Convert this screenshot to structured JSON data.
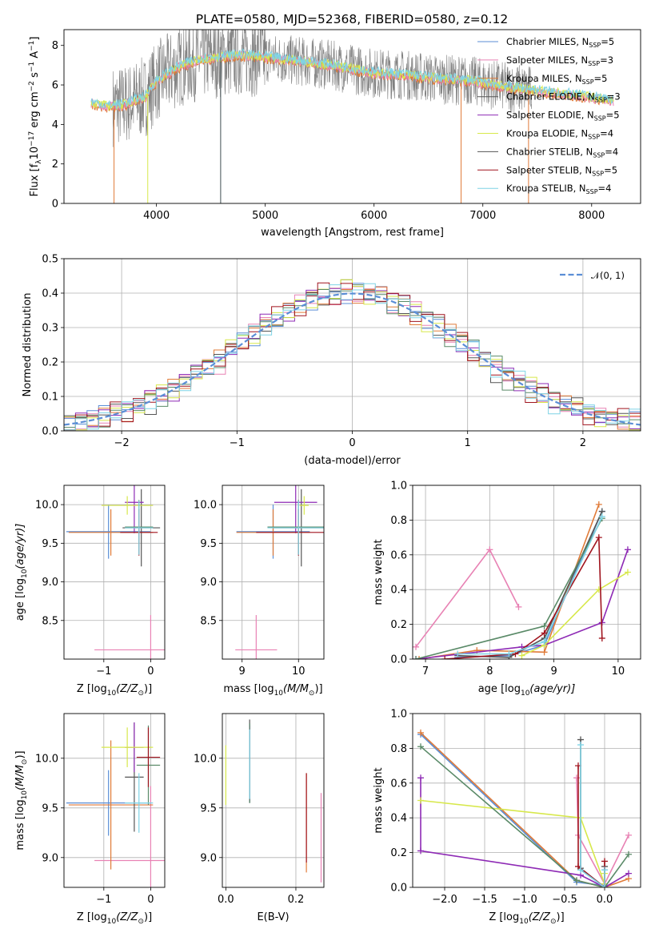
{
  "title": "PLATE=0580, MJD=52368, FIBERID=0580, z=0.12",
  "colors": {
    "chabrier_miles": "#5b8ed6",
    "salpeter_miles": "#e882b4",
    "kroupa_miles": "#e07b39",
    "chabrier_elodie": "#555555",
    "salpeter_elodie": "#8e2ab5",
    "kroupa_elodie": "#d7e84b",
    "chabrier_stelib": "#5a8a68",
    "salpeter_stelib": "#a0141e",
    "kroupa_stelib": "#7fd4e6",
    "gaussian": "#5b8ed6",
    "grey_spectrum": "#808080"
  },
  "chart_data": [
    {
      "id": "spectrum",
      "type": "line",
      "title": "PLATE=0580, MJD=52368, FIBERID=0580, z=0.12",
      "xlabel": "wavelength [Angstrom, rest frame]",
      "ylabel_parts": [
        "Flux [f",
        "λ",
        "10",
        "−17",
        " erg cm",
        "−2",
        " s",
        "−1",
        " A",
        "−1",
        "]"
      ],
      "xlim": [
        3150,
        8450
      ],
      "ylim": [
        0,
        8.8
      ],
      "xticks": [
        "4000",
        "5000",
        "6000",
        "7000",
        "8000"
      ],
      "xtick_values": [
        4000,
        5000,
        6000,
        7000,
        8000
      ],
      "yticks": [
        "0",
        "2",
        "4",
        "6",
        "8"
      ],
      "ytick_values": [
        0,
        2,
        4,
        6,
        8
      ],
      "legend_position": "top-right",
      "legend": [
        {
          "base": "Chabrier MILES, N",
          "sub": "SSP",
          "tail": "=5",
          "color": "#5b8ed6"
        },
        {
          "base": "Salpeter MILES, N",
          "sub": "SSP",
          "tail": "=3",
          "color": "#e882b4"
        },
        {
          "base": "Kroupa MILES, N",
          "sub": "SSP",
          "tail": "=5",
          "color": "#e07b39"
        },
        {
          "base": "Chabrier ELODIE, N",
          "sub": "SSP",
          "tail": "=3",
          "color": "#555555"
        },
        {
          "base": "Salpeter ELODIE, N",
          "sub": "SSP",
          "tail": "=5",
          "color": "#8e2ab5"
        },
        {
          "base": "Kroupa ELODIE, N",
          "sub": "SSP",
          "tail": "=4",
          "color": "#d7e84b"
        },
        {
          "base": "Chabrier STELIB, N",
          "sub": "SSP",
          "tail": "=4",
          "color": "#555555"
        },
        {
          "base": "Salpeter STELIB, N",
          "sub": "SSP",
          "tail": "=5",
          "color": "#a0141e"
        },
        {
          "base": "Kroupa STELIB, N",
          "sub": "SSP",
          "tail": "=4",
          "color": "#7fd4e6"
        }
      ],
      "continuum": {
        "wavelength": [
          3400,
          3550,
          3700,
          3900,
          4000,
          4200,
          4400,
          4600,
          4800,
          5000,
          5300,
          5600,
          6000,
          6300,
          6600,
          6900,
          7200,
          7500,
          7800,
          8100,
          8200
        ],
        "flux": [
          5.1,
          4.9,
          5.0,
          5.4,
          6.2,
          6.9,
          7.3,
          7.4,
          7.5,
          7.4,
          7.2,
          7.0,
          6.6,
          6.5,
          6.3,
          6.2,
          5.9,
          5.7,
          5.5,
          5.3,
          5.2
        ]
      },
      "model_wavelength_range": [
        3400,
        8200
      ],
      "observed_wavelength_range": [
        3600,
        7450
      ]
    },
    {
      "id": "residuals",
      "type": "line",
      "xlabel": "(data-model)/error",
      "ylabel": "Normed distribution",
      "xlim": [
        -2.5,
        2.5
      ],
      "ylim": [
        0,
        0.5
      ],
      "xticks": [
        "−2",
        "−1",
        "0",
        "1",
        "2"
      ],
      "xtick_values": [
        -2,
        -1,
        0,
        1,
        2
      ],
      "yticks": [
        "0.0",
        "0.1",
        "0.2",
        "0.3",
        "0.4",
        "0.5"
      ],
      "ytick_values": [
        0,
        0.1,
        0.2,
        0.3,
        0.4,
        0.5
      ],
      "grid": true,
      "legend_position": "top-right",
      "legend_label": "𝒩(0, 1)",
      "series": [
        {
          "name": "𝒩(0, 1)",
          "kind": "gaussian",
          "mean": 0,
          "sigma": 1,
          "style": "dashed"
        }
      ],
      "histograms": {
        "bin_width": 0.1,
        "x_start": -2.5,
        "note_series_order": [
          "chabrier_miles",
          "salpeter_miles",
          "kroupa_miles",
          "chabrier_elodie",
          "salpeter_elodie",
          "kroupa_elodie",
          "chabrier_stelib",
          "salpeter_stelib",
          "kroupa_stelib"
        ],
        "jitter": [
          0.012,
          -0.015,
          0.009,
          0.018,
          -0.01,
          0.014,
          -0.017,
          0.011,
          -0.008,
          0.016
        ]
      }
    },
    {
      "id": "age_vs_Z",
      "type": "scatter",
      "xlabel_parts": [
        "Z [log",
        "10",
        "(Z/Z",
        "⊙",
        ")]"
      ],
      "ylabel_parts": [
        "age  [log",
        "10",
        "(age/yr)]"
      ],
      "xlim": [
        -1.85,
        0.3
      ],
      "ylim": [
        8.0,
        10.25
      ],
      "xticks": [
        "−1",
        "0"
      ],
      "xtick_values": [
        -1,
        0
      ],
      "yticks": [
        "8.5",
        "9.0",
        "9.5",
        "10.0"
      ],
      "ytick_values": [
        8.5,
        9.0,
        9.5,
        10.0
      ],
      "grid": true,
      "points": [
        {
          "color": "#5b8ed6",
          "x": -0.9,
          "xerr": 0.9,
          "y": 9.65,
          "yerr": 0.35
        },
        {
          "color": "#e882b4",
          "x": 0.0,
          "xerr": 1.2,
          "y": 8.12,
          "yerr": 0.45
        },
        {
          "color": "#e07b39",
          "x": -0.85,
          "xerr": 0.9,
          "y": 9.64,
          "yerr": 0.3
        },
        {
          "color": "#555555",
          "x": -0.2,
          "xerr": 0.4,
          "y": 9.7,
          "yerr": 0.5
        },
        {
          "color": "#8e2ab5",
          "x": -0.35,
          "xerr": 0.2,
          "y": 10.03,
          "yerr": 0.4
        },
        {
          "color": "#d7e84b",
          "x": -0.5,
          "xerr": 0.55,
          "y": 9.99,
          "yerr": 0.12
        },
        {
          "color": "#5a8a68",
          "x": -0.25,
          "xerr": 0.3,
          "y": 9.71,
          "yerr": 0.35
        },
        {
          "color": "#a0141e",
          "x": -0.25,
          "xerr": 0.4,
          "y": 9.64,
          "yerr": 0.3
        },
        {
          "color": "#7fd4e6",
          "x": -0.25,
          "xerr": 0.3,
          "y": 9.7,
          "yerr": 0.35
        }
      ]
    },
    {
      "id": "age_vs_mass",
      "type": "scatter",
      "xlabel_parts": [
        "mass [log",
        "10",
        "(M/M",
        "⊙",
        ")]"
      ],
      "xlim": [
        8.65,
        10.45
      ],
      "ylim": [
        8.0,
        10.25
      ],
      "xticks": [
        "9",
        "10"
      ],
      "xtick_values": [
        9,
        10
      ],
      "yticks": [
        "8.5",
        "9.0",
        "9.5",
        "10.0"
      ],
      "ytick_values": [
        8.5,
        9.0,
        9.5,
        10.0
      ],
      "grid": true,
      "points": [
        {
          "color": "#5b8ed6",
          "x": 9.55,
          "xerr": 0.65,
          "y": 9.65,
          "yerr": 0.35
        },
        {
          "color": "#e882b4",
          "x": 9.25,
          "xerr": 0.37,
          "y": 8.12,
          "yerr": 0.45
        },
        {
          "color": "#e07b39",
          "x": 9.55,
          "xerr": 0.65,
          "y": 9.64,
          "yerr": 0.3
        },
        {
          "color": "#555555",
          "x": 10.05,
          "xerr": 0.5,
          "y": 9.7,
          "yerr": 0.5
        },
        {
          "color": "#8e2ab5",
          "x": 9.95,
          "xerr": 0.38,
          "y": 10.03,
          "yerr": 0.4
        },
        {
          "color": "#d7e84b",
          "x": 10.1,
          "xerr": 0.08,
          "y": 9.99,
          "yerr": 0.12
        },
        {
          "color": "#5a8a68",
          "x": 10.0,
          "xerr": 0.55,
          "y": 9.71,
          "yerr": 0.35
        },
        {
          "color": "#a0141e",
          "x": 10.0,
          "xerr": 0.75,
          "y": 9.64,
          "yerr": 0.3
        },
        {
          "color": "#7fd4e6",
          "x": 10.0,
          "xerr": 0.55,
          "y": 9.7,
          "yerr": 0.35
        }
      ]
    },
    {
      "id": "weight_vs_age",
      "type": "line",
      "xlabel_parts": [
        "age  [log",
        "10",
        "(age/yr)]"
      ],
      "ylabel": "mass weight",
      "xlim": [
        6.8,
        10.35
      ],
      "ylim": [
        0,
        1.0
      ],
      "xticks": [
        "7",
        "8",
        "9",
        "10"
      ],
      "xtick_values": [
        7,
        8,
        9,
        10
      ],
      "yticks": [
        "0.0",
        "0.2",
        "0.4",
        "0.6",
        "0.8",
        "1.0"
      ],
      "ytick_values": [
        0,
        0.2,
        0.4,
        0.6,
        0.8,
        1.0
      ],
      "grid": true,
      "series": [
        {
          "color": "#5b8ed6",
          "x": [
            7.5,
            8.3,
            8.85,
            9.75
          ],
          "y": [
            0.01,
            0.02,
            0.08,
            0.85
          ]
        },
        {
          "color": "#e882b4",
          "x": [
            6.85,
            8.0,
            8.45
          ],
          "y": [
            0.07,
            0.63,
            0.3
          ]
        },
        {
          "color": "#e07b39",
          "x": [
            6.9,
            7.8,
            8.85,
            9.7
          ],
          "y": [
            0.0,
            0.05,
            0.04,
            0.89
          ]
        },
        {
          "color": "#555555",
          "x": [
            7.5,
            8.3,
            8.85,
            9.75
          ],
          "y": [
            0.02,
            0.01,
            0.12,
            0.85
          ]
        },
        {
          "color": "#8e2ab5",
          "x": [
            6.85,
            8.5,
            8.85,
            9.75,
            10.15
          ],
          "y": [
            0.0,
            0.07,
            0.08,
            0.21,
            0.63
          ]
        },
        {
          "color": "#d7e84b",
          "x": [
            8.5,
            8.85,
            9.7,
            10.15
          ],
          "y": [
            0.02,
            0.08,
            0.4,
            0.5
          ]
        },
        {
          "color": "#5a8a68",
          "x": [
            6.85,
            8.85,
            9.75
          ],
          "y": [
            0.0,
            0.19,
            0.81
          ]
        },
        {
          "color": "#a0141e",
          "x": [
            7.3,
            8.4,
            8.85,
            9.7,
            9.75
          ],
          "y": [
            0.0,
            0.03,
            0.15,
            0.7,
            0.12
          ]
        },
        {
          "color": "#7fd4e6",
          "x": [
            7.5,
            8.3,
            8.85,
            9.75
          ],
          "y": [
            0.03,
            0.03,
            0.1,
            0.82
          ]
        }
      ]
    },
    {
      "id": "mass_vs_Z",
      "type": "scatter",
      "xlabel_parts": [
        "Z [log",
        "10",
        "(Z/Z",
        "⊙",
        ")]"
      ],
      "ylabel_parts": [
        "mass [log",
        "10",
        "(M/M",
        "⊙",
        ")]"
      ],
      "xlim": [
        -1.85,
        0.3
      ],
      "ylim": [
        8.7,
        10.45
      ],
      "xticks": [
        "−1",
        "0"
      ],
      "xtick_values": [
        -1,
        0
      ],
      "yticks": [
        "9.0",
        "9.5",
        "10.0"
      ],
      "ytick_values": [
        9.0,
        9.5,
        10.0
      ],
      "grid": true,
      "points": [
        {
          "color": "#5b8ed6",
          "x": -0.9,
          "xerr": 0.9,
          "y": 9.55,
          "yerr": 0.33
        },
        {
          "color": "#e882b4",
          "x": 0.0,
          "xerr": 1.2,
          "y": 8.97,
          "yerr": 0.75
        },
        {
          "color": "#e07b39",
          "x": -0.85,
          "xerr": 0.9,
          "y": 9.53,
          "yerr": 0.65
        },
        {
          "color": "#555555",
          "x": -0.35,
          "xerr": 0.2,
          "y": 9.81,
          "yerr": 0.55
        },
        {
          "color": "#8e2ab5",
          "x": -0.35,
          "xerr": 0.2,
          "y": 10.11,
          "yerr": 0.25
        },
        {
          "color": "#d7e84b",
          "x": -0.5,
          "xerr": 0.55,
          "y": 10.11,
          "yerr": 0.2
        },
        {
          "color": "#5a8a68",
          "x": -0.05,
          "xerr": 0.25,
          "y": 9.93,
          "yerr": 0.4
        },
        {
          "color": "#a0141e",
          "x": -0.05,
          "xerr": 0.25,
          "y": 10.01,
          "yerr": 0.3
        },
        {
          "color": "#7fd4e6",
          "x": -0.25,
          "xerr": 0.3,
          "y": 9.55,
          "yerr": 0.3
        }
      ]
    },
    {
      "id": "mass_vs_EBV",
      "type": "scatter",
      "xlabel": "E(B-V)",
      "xlim": [
        -0.01,
        0.28
      ],
      "ylim": [
        8.7,
        10.45
      ],
      "xticks": [
        "0.0",
        "0.2"
      ],
      "xtick_values": [
        0.0,
        0.2
      ],
      "yticks": [
        "9.0",
        "9.5",
        "10.0"
      ],
      "ytick_values": [
        9.0,
        9.5,
        10.0
      ],
      "grid": true,
      "points": [
        {
          "color": "#5b8ed6",
          "x": 0.068,
          "xerr": 0,
          "y": 9.95,
          "yerr": 0.4
        },
        {
          "color": "#e882b4",
          "x": 0.272,
          "xerr": 0,
          "y": 9.2,
          "yerr": 0.45
        },
        {
          "color": "#e07b39",
          "x": 0.23,
          "xerr": 0,
          "y": 9.35,
          "yerr": 0.5
        },
        {
          "color": "#555555",
          "x": 0.068,
          "xerr": 0,
          "y": 9.97,
          "yerr": 0.42
        },
        {
          "color": "#8e2ab5",
          "x": 0.068,
          "xerr": 0,
          "y": 9.95,
          "yerr": 0.38
        },
        {
          "color": "#d7e84b",
          "x": 0.0,
          "xerr": 0,
          "y": 9.83,
          "yerr": 0.3
        },
        {
          "color": "#5a8a68",
          "x": 0.068,
          "xerr": 0,
          "y": 9.95,
          "yerr": 0.4
        },
        {
          "color": "#a0141e",
          "x": 0.23,
          "xerr": 0,
          "y": 9.4,
          "yerr": 0.45
        },
        {
          "color": "#7fd4e6",
          "x": 0.068,
          "xerr": 0,
          "y": 9.94,
          "yerr": 0.35
        }
      ]
    },
    {
      "id": "weight_vs_Z",
      "type": "line",
      "xlabel_parts": [
        "Z [log",
        "10",
        "(Z/Z",
        "⊙",
        ")]"
      ],
      "ylabel": "mass weight",
      "xlim": [
        -2.4,
        0.45
      ],
      "ylim": [
        0,
        1.0
      ],
      "xticks": [
        "−2.0",
        "−1.5",
        "−1.0",
        "−0.5",
        "0.0"
      ],
      "xtick_values": [
        -2.0,
        -1.5,
        -1.0,
        -0.5,
        0.0
      ],
      "yticks": [
        "0.0",
        "0.2",
        "0.4",
        "0.6",
        "0.8",
        "1.0"
      ],
      "ytick_values": [
        0,
        0.2,
        0.4,
        0.6,
        0.8,
        1.0
      ],
      "grid": true,
      "series": [
        {
          "color": "#5b8ed6",
          "x": [
            -2.3,
            -0.35,
            0.0,
            0.0
          ],
          "y": [
            0.88,
            0.03,
            0.01,
            0.1
          ]
        },
        {
          "color": "#e882b4",
          "x": [
            -0.35,
            -0.33,
            0.0,
            0.3
          ],
          "y": [
            0.63,
            0.3,
            0.02,
            0.3
          ]
        },
        {
          "color": "#e07b39",
          "x": [
            -2.3,
            -0.35,
            0.0,
            0.3
          ],
          "y": [
            0.89,
            0.04,
            0.0,
            0.05
          ]
        },
        {
          "color": "#555555",
          "x": [
            -0.3,
            -0.3,
            0.0,
            0.0
          ],
          "y": [
            0.85,
            0.11,
            0.0,
            0.12
          ]
        },
        {
          "color": "#8e2ab5",
          "x": [
            -2.3,
            -2.3,
            -0.3,
            0.0,
            0.3
          ],
          "y": [
            0.63,
            0.21,
            0.07,
            0.0,
            0.08
          ]
        },
        {
          "color": "#d7e84b",
          "x": [
            -2.3,
            -0.3,
            0.0,
            0.0
          ],
          "y": [
            0.5,
            0.4,
            0.02,
            0.08
          ]
        },
        {
          "color": "#5a8a68",
          "x": [
            -2.3,
            -0.35,
            0.0,
            0.3
          ],
          "y": [
            0.81,
            0.04,
            0.0,
            0.19
          ]
        },
        {
          "color": "#a0141e",
          "x": [
            -0.33,
            -0.33,
            0.0,
            0.0
          ],
          "y": [
            0.7,
            0.12,
            0.0,
            0.15
          ]
        },
        {
          "color": "#7fd4e6",
          "x": [
            -0.3,
            -0.3,
            0.0,
            0.0
          ],
          "y": [
            0.82,
            0.1,
            0.0,
            0.1
          ]
        }
      ]
    }
  ]
}
